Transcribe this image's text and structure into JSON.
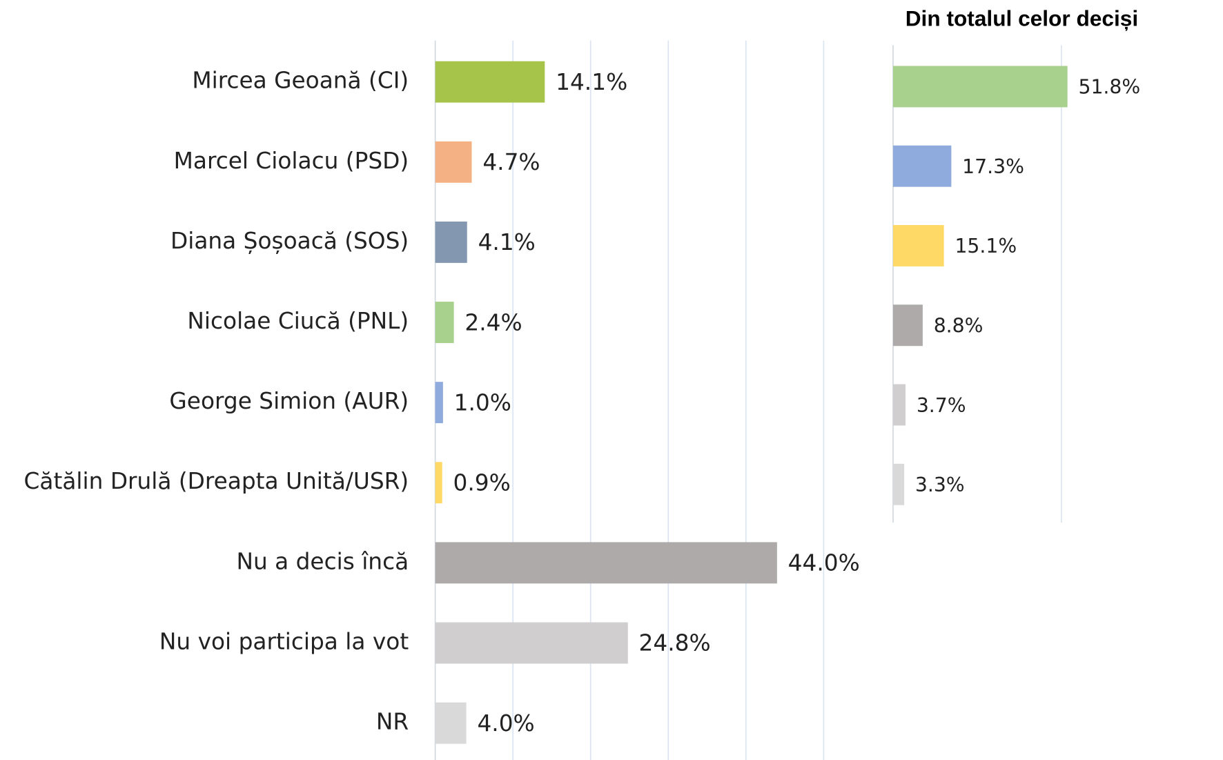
{
  "chart_data": [
    {
      "type": "bar",
      "orientation": "horizontal",
      "categories": [
        "Mircea Geoană (CI)",
        "Marcel Ciolacu (PSD)",
        "Diana Șoșoacă (SOS)",
        "Nicolae Ciucă (PNL)",
        "George Simion (AUR)",
        "Cătălin Drulă (Dreapta Unită/USR)",
        "Nu a decis încă",
        "Nu voi participa la vot",
        "NR"
      ],
      "values": [
        14.1,
        4.7,
        4.1,
        2.4,
        1.0,
        0.9,
        44.0,
        24.8,
        4.0
      ],
      "value_labels": [
        "14.1%",
        "4.7%",
        "4.1%",
        "2.4%",
        "1.0%",
        "0.9%",
        "44.0%",
        "24.8%",
        "4.0%"
      ],
      "colors": [
        "#a6c34a",
        "#f4b183",
        "#8497b0",
        "#a9d18e",
        "#8faadc",
        "#ffd966",
        "#aeaaaa",
        "#d0cece",
        "#d9d9d9"
      ],
      "xlim": [
        0,
        50
      ],
      "xticks": [
        0,
        10,
        20,
        30,
        40,
        50
      ],
      "grid": true
    },
    {
      "type": "bar",
      "orientation": "horizontal",
      "title": "Din totalul celor deciși",
      "values": [
        51.8,
        17.3,
        15.1,
        8.8,
        3.7,
        3.3
      ],
      "value_labels": [
        "51.8%",
        "17.3%",
        "15.1%",
        "8.8%",
        "3.7%",
        "3.3%"
      ],
      "colors": [
        "#a9d18e",
        "#8faadc",
        "#ffd966",
        "#aeaaaa",
        "#d0cece",
        "#d9d9d9"
      ],
      "xlim": [
        0,
        60
      ],
      "xticks": [
        0,
        50
      ],
      "grid": true
    }
  ]
}
